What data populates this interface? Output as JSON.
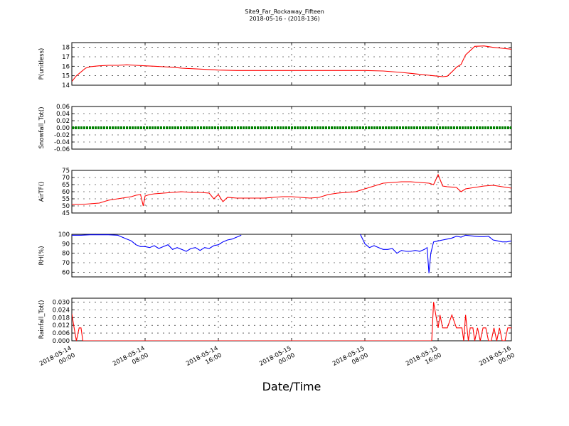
{
  "chart_data": {
    "type": "line",
    "title": "Site9_Far_Rockaway_Fifteen",
    "subtitle": "2018-05-16 - (2018-136)",
    "xlabel": "Date/Time",
    "x_range": [
      "2018-05-14 00:00",
      "2018-05-16 00:00"
    ],
    "x_tick_labels": [
      [
        "2018-05-14",
        "00:00"
      ],
      [
        "2018-05-14",
        "08:00"
      ],
      [
        "2018-05-14",
        "16:00"
      ],
      [
        "2018-05-15",
        "00:00"
      ],
      [
        "2018-05-15",
        "08:00"
      ],
      [
        "2018-05-15",
        "16:00"
      ],
      [
        "2018-05-16",
        "00:00"
      ]
    ],
    "x_unit_hours": [
      0,
      48
    ],
    "grid": true,
    "panels": [
      {
        "ylabel": "P(unitless)",
        "ylim": [
          14,
          18.5
        ],
        "yticks": [
          14,
          15,
          16,
          17,
          18
        ],
        "color": "#ff0000",
        "series": [
          {
            "x_hours": [
              0,
              0.5,
              1,
              1.5,
              2,
              3,
              4,
              5,
              6,
              7,
              8,
              9,
              10,
              11,
              12,
              14,
              16,
              18,
              20,
              22,
              24,
              26,
              28,
              30,
              32,
              34,
              36,
              37,
              38,
              39,
              39.5,
              40,
              40.5,
              41,
              41.5,
              42,
              42.5,
              43,
              44,
              45,
              46,
              47,
              48
            ],
            "values": [
              14.4,
              15.0,
              15.4,
              15.8,
              15.95,
              16.05,
              16.1,
              16.1,
              16.15,
              16.1,
              16.05,
              16.0,
              15.95,
              15.9,
              15.8,
              15.7,
              15.6,
              15.55,
              15.55,
              15.55,
              15.55,
              15.55,
              15.55,
              15.55,
              15.55,
              15.5,
              15.35,
              15.25,
              15.15,
              15.05,
              15.0,
              14.95,
              14.9,
              14.95,
              15.4,
              15.9,
              16.2,
              17.2,
              18.1,
              18.15,
              18.0,
              17.9,
              17.8
            ]
          }
        ]
      },
      {
        "ylabel": "Snowfall_Tot()",
        "ylim": [
          -0.06,
          0.06
        ],
        "yticks": [
          -0.06,
          -0.04,
          -0.02,
          0.0,
          0.02,
          0.04,
          0.06
        ],
        "color": "#008000",
        "series": [
          {
            "x_hours": [
              0,
              48
            ],
            "values": [
              0,
              0
            ]
          }
        ]
      },
      {
        "ylabel": "AirTF()",
        "ylim": [
          45,
          75
        ],
        "yticks": [
          45,
          50,
          55,
          60,
          65,
          70,
          75
        ],
        "color": "#ff0000",
        "series": [
          {
            "x_hours": [
              0,
              1,
              2,
              3,
              4,
              5,
              6,
              6.5,
              7,
              7.5,
              7.8,
              8,
              8.5,
              9,
              10,
              11,
              12,
              13,
              14,
              15,
              15.5,
              16,
              16.5,
              17,
              18,
              19,
              20,
              21,
              22,
              23,
              24,
              25,
              26,
              27,
              28,
              29,
              30,
              31,
              32,
              33,
              34,
              35,
              36,
              37,
              38,
              39,
              39.5,
              40,
              40.5,
              41,
              42,
              42.5,
              43,
              44,
              45,
              46,
              47,
              48
            ],
            "values": [
              51,
              51,
              51.5,
              52,
              54,
              55,
              56,
              56.5,
              57.5,
              58,
              50,
              57,
              58,
              58.5,
              59,
              59.5,
              60,
              59.5,
              59.5,
              59,
              55,
              58,
              53,
              56,
              55.5,
              55.5,
              55.5,
              55.5,
              56,
              56.5,
              56.5,
              56,
              55.5,
              56,
              58,
              59,
              59.5,
              60,
              62,
              64,
              66,
              66.5,
              67,
              67,
              66.5,
              66,
              65,
              72,
              64,
              63.5,
              63,
              60,
              62,
              63,
              64,
              64.5,
              63.5,
              62.5
            ]
          }
        ]
      },
      {
        "ylabel": "RH(%)",
        "ylim": [
          55,
          100
        ],
        "yticks": [
          60,
          70,
          80,
          90,
          100
        ],
        "color": "#0000ff",
        "series": [
          {
            "x_hours": [
              0,
              1,
              2,
              3,
              4,
              5,
              5.5,
              6,
              6.5,
              7,
              7.5,
              8,
              8.5,
              9,
              9.5,
              10,
              10.5,
              11,
              11.5,
              12,
              12.5,
              13,
              13.5,
              14,
              14.5,
              15,
              15.5,
              16,
              16.5,
              17,
              17.5,
              18,
              18.5
            ],
            "values": [
              99,
              99,
              99.5,
              99.5,
              99.5,
              99,
              97,
              95,
              93,
              89,
              87,
              87,
              86,
              88,
              85,
              87,
              89,
              84,
              86,
              84,
              82,
              85,
              86,
              83,
              86,
              85,
              88,
              89,
              92,
              94,
              95,
              97,
              99
            ]
          },
          {
            "x_hours": [
              31.5,
              32,
              32.5,
              33,
              33.5,
              34,
              34.5,
              35,
              35.5,
              36,
              36.5,
              37,
              37.5,
              38,
              38.5,
              38.8,
              39,
              39.2,
              39.5,
              40,
              40.5,
              41,
              41.5,
              42,
              42.5,
              43,
              43.5,
              44,
              44.5,
              45,
              45.5,
              46,
              46.5,
              47,
              47.5,
              48
            ],
            "values": [
              100,
              90,
              86,
              88,
              86,
              84,
              84,
              85,
              80,
              83,
              82,
              82,
              83,
              82,
              84,
              86,
              59,
              80,
              92,
              93,
              94,
              95,
              96,
              98,
              97,
              99,
              98.5,
              98,
              97.5,
              97.5,
              98,
              94,
              93,
              92,
              92,
              93
            ]
          }
        ]
      },
      {
        "ylabel": "Rainfall_Tot()",
        "ylim": [
          0,
          0.033
        ],
        "yticks": [
          0.0,
          0.006,
          0.012,
          0.018,
          0.024,
          0.03
        ],
        "tick_labels": [
          "0.000",
          "0.006",
          "0.012",
          "0.018",
          "0.024",
          "0.030"
        ],
        "color": "#ff0000",
        "series": [
          {
            "x_hours": [
              0,
              0.2,
              0.5,
              0.8,
              1,
              1.2,
              1.5,
              39.3,
              39.5,
              39.8,
              40,
              40.2,
              40.5,
              41,
              41.5,
              42,
              42.3,
              42.6,
              42.8,
              43,
              43.3,
              43.5,
              43.8,
              44,
              44.3,
              44.6,
              44.9,
              45.2,
              45.5,
              45.8,
              46.1,
              46.4,
              46.7,
              47,
              47.3,
              47.6,
              48
            ],
            "values": [
              0.021,
              0.012,
              0.0,
              0.01,
              0.01,
              0.0,
              0.0,
              0.0,
              0.03,
              0.018,
              0.01,
              0.02,
              0.01,
              0.01,
              0.02,
              0.01,
              0.01,
              0.01,
              0.0,
              0.02,
              0.0,
              0.01,
              0.01,
              0.0,
              0.01,
              0.0,
              0.01,
              0.01,
              0.0,
              0.0,
              0.01,
              0.0,
              0.01,
              0.0,
              0.0,
              0.01,
              0.01
            ]
          }
        ]
      }
    ]
  }
}
